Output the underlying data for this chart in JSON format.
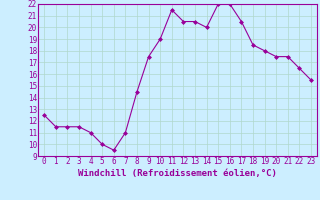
{
  "x": [
    0,
    1,
    2,
    3,
    4,
    5,
    6,
    7,
    8,
    9,
    10,
    11,
    12,
    13,
    14,
    15,
    16,
    17,
    18,
    19,
    20,
    21,
    22,
    23
  ],
  "y": [
    12.5,
    11.5,
    11.5,
    11.5,
    11.0,
    10.0,
    9.5,
    11.0,
    14.5,
    17.5,
    19.0,
    21.5,
    20.5,
    20.5,
    20.0,
    22.0,
    22.0,
    20.5,
    18.5,
    18.0,
    17.5,
    17.5,
    16.5,
    15.5
  ],
  "ylim": [
    9,
    22
  ],
  "yticks": [
    9,
    10,
    11,
    12,
    13,
    14,
    15,
    16,
    17,
    18,
    19,
    20,
    21,
    22
  ],
  "xticks": [
    0,
    1,
    2,
    3,
    4,
    5,
    6,
    7,
    8,
    9,
    10,
    11,
    12,
    13,
    14,
    15,
    16,
    17,
    18,
    19,
    20,
    21,
    22,
    23
  ],
  "xlabel": "Windchill (Refroidissement éolien,°C)",
  "line_color": "#990099",
  "marker": "D",
  "background_color": "#cceeff",
  "grid_color": "#b0d8cc",
  "label_fontsize": 6.5,
  "tick_fontsize": 5.5
}
